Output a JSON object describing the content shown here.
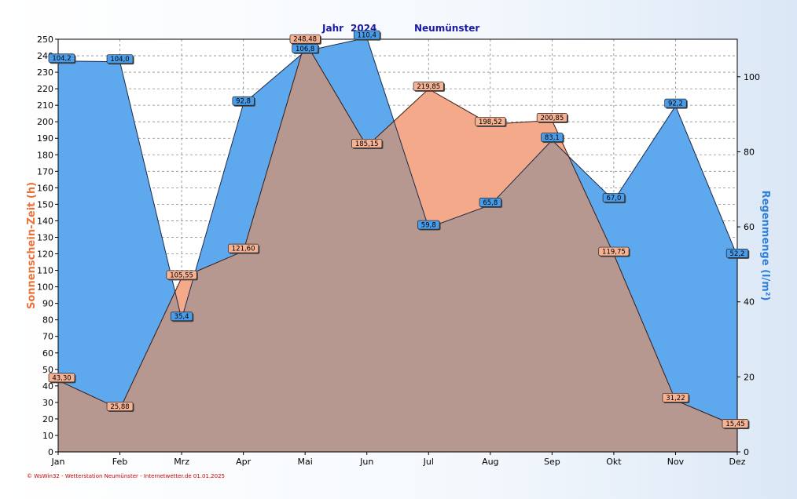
{
  "header": {
    "title_year_label": "Jahr",
    "title_year": "2024",
    "title_station": "Neumünster"
  },
  "footer": {
    "text": "© WsWin32 - Wetterstation Neumünster - Internetwetter.de  01.01.2025"
  },
  "colors": {
    "sunshine_fill": "#f4a98a",
    "rain_fill": "#5ea8ee",
    "overlap_fill": "#b79890",
    "sunshine_label_bg": "#f6b294",
    "rain_label_bg": "#4a9ce8",
    "left_axis_color": "#e8743b",
    "right_axis_color": "#2f7fd8",
    "title_color": "#1a1aa6"
  },
  "chart_data": {
    "type": "area",
    "categories": [
      "Jan",
      "Feb",
      "Mrz",
      "Apr",
      "Mai",
      "Jun",
      "Jul",
      "Aug",
      "Sep",
      "Okt",
      "Nov",
      "Dez"
    ],
    "ylabel_left": "Sonnenschein-Zeit  (h)",
    "ylabel_right": "Regenmenge  (l/m²)",
    "ylim_left": [
      0,
      250
    ],
    "ylim_right": [
      0,
      110
    ],
    "yticks_left": [
      0,
      10,
      20,
      30,
      40,
      50,
      60,
      70,
      80,
      90,
      100,
      110,
      120,
      130,
      140,
      150,
      160,
      170,
      180,
      190,
      200,
      210,
      220,
      230,
      240,
      250
    ],
    "yticks_right": [
      0,
      20,
      40,
      60,
      80,
      100
    ],
    "grid": true,
    "series": [
      {
        "name": "Sonnenschein-Zeit",
        "axis": "left",
        "values": [
          43.3,
          25.88,
          105.55,
          121.6,
          248.48,
          185.15,
          219.85,
          198.52,
          200.85,
          119.75,
          31.22,
          15.45
        ],
        "labels": [
          "43,30",
          "25,88",
          "105,55",
          "121,60",
          "248,48",
          "185,15",
          "219,85",
          "198,52",
          "200,85",
          "119,75",
          "31,22",
          "15,45"
        ]
      },
      {
        "name": "Regenmenge",
        "axis": "right",
        "values": [
          104.2,
          104.0,
          35.4,
          92.8,
          106.8,
          110.4,
          59.8,
          65.8,
          83.1,
          67.0,
          92.2,
          52.2
        ],
        "labels": [
          "104,2",
          "104,0",
          "35,4",
          "92,8",
          "106,8",
          "110,4",
          "59,8",
          "65,8",
          "83,1",
          "67,0",
          "92,2",
          "52,2"
        ]
      }
    ]
  }
}
